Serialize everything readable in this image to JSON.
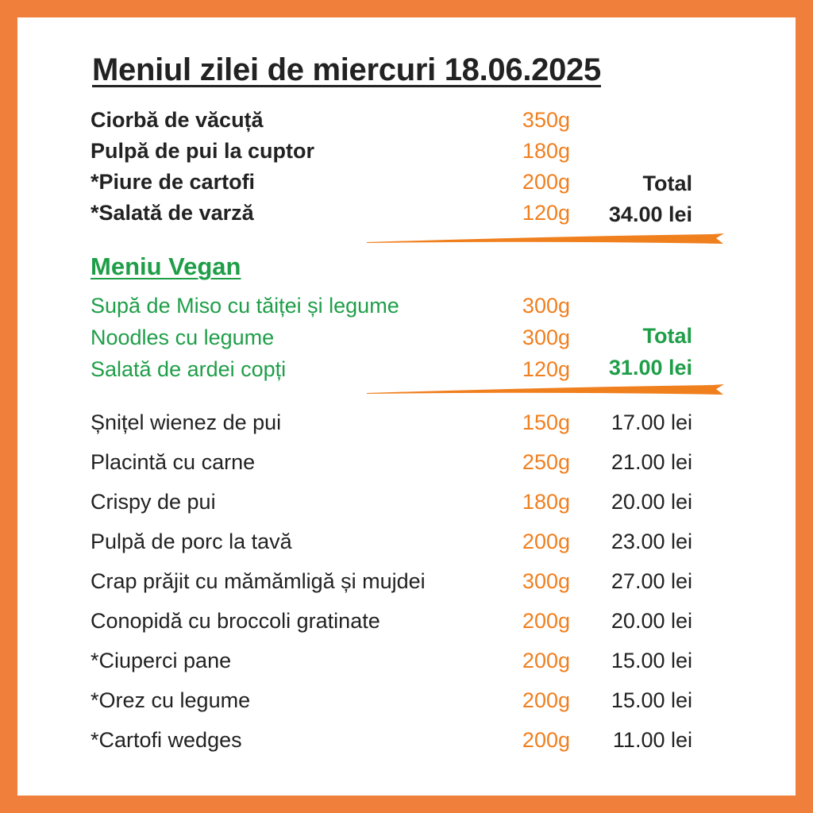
{
  "title": "Meniul zilei de miercuri 18.06.2025",
  "menu": {
    "items": [
      {
        "name": " Ciorbă de văcuță",
        "weight": "350g"
      },
      {
        "name": " Pulpă de pui la cuptor",
        "weight": "180g"
      },
      {
        "name": "*Piure de cartofi",
        "weight": "200g"
      },
      {
        "name": "*Salată de varză",
        "weight": "120g"
      }
    ],
    "total_label": "Total",
    "total_price": "34.00 lei"
  },
  "vegan": {
    "title": "Meniu Vegan",
    "items": [
      {
        "name": "Supă de Miso cu tăiței și legume",
        "weight": "300g"
      },
      {
        "name": "Noodles cu legume",
        "weight": "300g"
      },
      {
        "name": "Salată de ardei copți",
        "weight": "120g"
      }
    ],
    "total_label": "Total",
    "total_price": "31.00 lei"
  },
  "a_la_carte": [
    {
      "name": "Șnițel wienez de pui",
      "weight": "150g",
      "price": "17.00 lei"
    },
    {
      "name": "Placintă cu carne",
      "weight": "250g",
      "price": "21.00 lei"
    },
    {
      "name": "Crispy de pui",
      "weight": "180g",
      "price": "20.00 lei"
    },
    {
      "name": "Pulpă de porc la tavă",
      "weight": "200g",
      "price": "23.00 lei"
    },
    {
      "name": "Crap prăjit cu mămămligă și mujdei",
      "weight": "300g",
      "price": "27.00 lei"
    },
    {
      "name": "Conopidă cu broccoli gratinate",
      "weight": "200g",
      "price": "20.00 lei"
    },
    {
      "name": "*Ciuperci pane",
      "weight": "200g",
      "price": "15.00 lei"
    },
    {
      "name": "*Orez cu legume",
      "weight": "200g",
      "price": "15.00 lei"
    },
    {
      "name": "*Cartofi wedges",
      "weight": "200g",
      "price": "11.00 lei"
    }
  ],
  "colors": {
    "border": "#f07f3c",
    "accent_orange": "#f07f1e",
    "vegan_green": "#1f9e48",
    "text_dark": "#222222"
  }
}
